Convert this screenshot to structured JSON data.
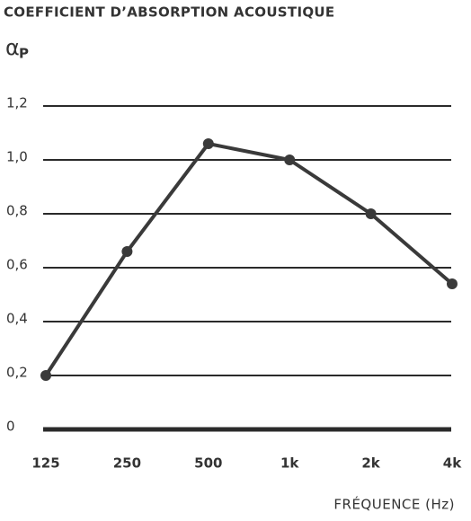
{
  "chart_data": {
    "type": "line",
    "title": "COEFFICIENT D’ABSORPTION ACOUSTIQUE",
    "ylabel": "α",
    "ylabel_subscript": "P",
    "xlabel": "FRÉQUENCE (Hz)",
    "categories": [
      "125",
      "250",
      "500",
      "1k",
      "2k",
      "4k"
    ],
    "values": [
      0.2,
      0.66,
      1.06,
      1.0,
      0.8,
      0.54
    ],
    "color": "#3a3a3a",
    "ylim": [
      0,
      1.2
    ],
    "yticks": [
      0,
      {
        "value": 0.2,
        "label": "0,2"
      },
      {
        "value": 0.4,
        "label": "0,4"
      },
      {
        "value": 0.6,
        "label": "0,6"
      },
      {
        "value": 0.8,
        "label": "0,8"
      },
      {
        "value": 1.0,
        "label": "1,0"
      },
      {
        "value": 1.2,
        "label": "1,2"
      }
    ],
    "grid": true
  }
}
